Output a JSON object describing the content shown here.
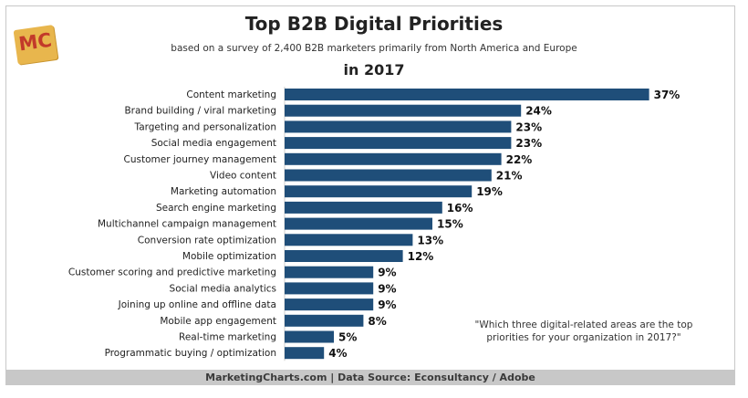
{
  "logo": {
    "text": "MC"
  },
  "colors": {
    "bar": "#1f4e79",
    "text": "#222222",
    "footer_bg": "#c8c8c8"
  },
  "chart_data": {
    "type": "bar",
    "orientation": "horizontal",
    "title": "Top B2B Digital Priorities",
    "subtitle": "based on a survey of 2,400 B2B marketers primarily from North America and Europe",
    "period": "in 2017",
    "categories": [
      "Content marketing",
      "Brand building / viral marketing",
      "Targeting and personalization",
      "Social media engagement",
      "Customer journey management",
      "Video content",
      "Marketing automation",
      "Search engine marketing",
      "Multichannel campaign management",
      "Conversion rate optimization",
      "Mobile optimization",
      "Customer scoring and predictive marketing",
      "Social media analytics",
      "Joining up online and offline data",
      "Mobile app engagement",
      "Real-time marketing",
      "Programmatic buying / optimization"
    ],
    "values": [
      37,
      24,
      23,
      23,
      22,
      21,
      19,
      16,
      15,
      13,
      12,
      9,
      9,
      9,
      8,
      5,
      4
    ],
    "value_labels": [
      "37%",
      "24%",
      "23%",
      "23%",
      "22%",
      "21%",
      "19%",
      "16%",
      "15%",
      "13%",
      "12%",
      "9%",
      "9%",
      "9%",
      "8%",
      "5%",
      "4%"
    ],
    "annotation": "\"Which three digital-related areas are the top priorities for your organization in 2017?\"",
    "xlabel": "",
    "ylabel": "",
    "grid": false,
    "legend": "none"
  },
  "footer": {
    "text": "MarketingCharts.com | Data Source: Econsultancy / Adobe"
  }
}
